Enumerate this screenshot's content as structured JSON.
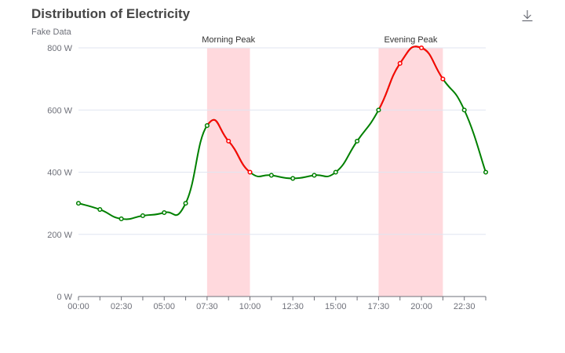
{
  "chart_data": {
    "type": "line",
    "title": "Distribution of Electricity",
    "subtitle": "Fake Data",
    "x": [
      "00:00",
      "01:15",
      "02:30",
      "03:45",
      "05:00",
      "06:15",
      "07:30",
      "08:45",
      "10:00",
      "11:15",
      "12:30",
      "13:45",
      "15:00",
      "16:15",
      "17:30",
      "18:45",
      "20:00",
      "21:15",
      "22:30",
      "23:45"
    ],
    "values": [
      300,
      280,
      250,
      260,
      270,
      300,
      550,
      500,
      400,
      390,
      380,
      390,
      400,
      500,
      600,
      750,
      800,
      700,
      600,
      400
    ],
    "x_tick_labels": [
      "00:00",
      "02:30",
      "05:00",
      "07:30",
      "10:00",
      "12:30",
      "15:00",
      "17:30",
      "20:00",
      "22:30"
    ],
    "y_ticks": [
      0,
      200,
      400,
      600,
      800
    ],
    "y_unit": " W",
    "ylim": [
      0,
      800
    ],
    "grid": true,
    "colors": {
      "normal": "#008000",
      "peak": "#ff0000",
      "mark_area": "#ffd9dd"
    },
    "peak_index_ranges": [
      [
        6,
        8
      ],
      [
        14,
        17
      ]
    ],
    "mark_areas": [
      {
        "label": "Morning Peak",
        "from": "07:30",
        "to": "10:00"
      },
      {
        "label": "Evening Peak",
        "from": "17:30",
        "to": "21:15"
      }
    ]
  },
  "toolbox": {
    "save_icon": "download-icon"
  }
}
